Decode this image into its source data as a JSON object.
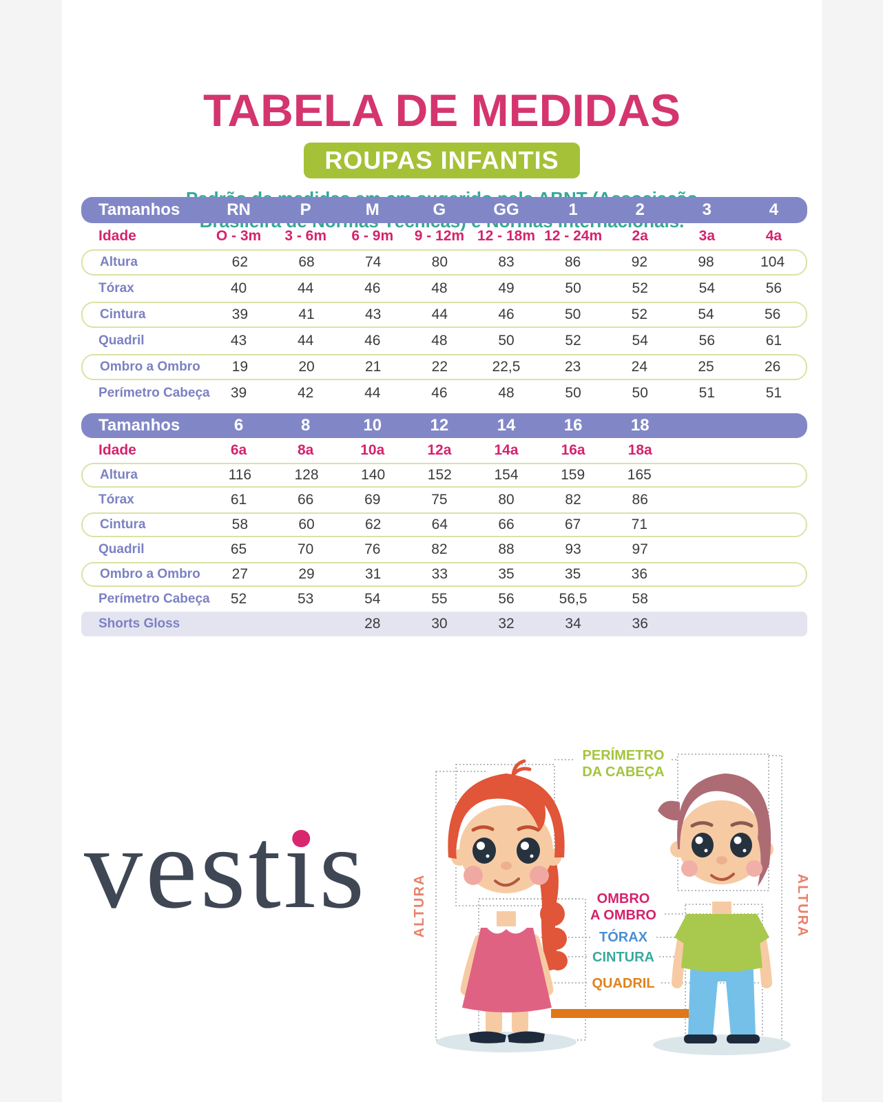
{
  "page": {
    "title": "TABELA DE MEDIDAS",
    "subtitle": "ROUPAS INFANTIS",
    "description_line1": "Padrão de medidas em cm sugerido pela ABNT (Associação",
    "description_line2": "Brasileira de Normas Técnicas) e Normas Internacionais.",
    "brand_prefix": "vest",
    "brand_dotless_i": "ı",
    "brand_suffix": "s"
  },
  "colors": {
    "title_pink": "#d4356f",
    "badge_green": "#a5c138",
    "description_teal": "#38a79b",
    "header_purple": "#8187c6",
    "age_pink": "#d4236d",
    "label_periwinkle": "#7b81c3",
    "row_border_lime": "#d9e3a4",
    "highlight_lavender": "#e4e4f1",
    "logo_dot_pink": "#d8276f",
    "bar_orange": "#e07818"
  },
  "table1": {
    "header_label": "Tamanhos",
    "sizes": [
      "RN",
      "P",
      "M",
      "G",
      "GG",
      "1",
      "2",
      "3",
      "4"
    ],
    "age_label": "Idade",
    "ages": [
      "O - 3m",
      "3 - 6m",
      "6 - 9m",
      "9 - 12m",
      "12 - 18m",
      "12 - 24m",
      "2a",
      "3a",
      "4a"
    ],
    "rows": [
      {
        "label": "Altura",
        "values": [
          "62",
          "68",
          "74",
          "80",
          "83",
          "86",
          "92",
          "98",
          "104"
        ],
        "bordered": true
      },
      {
        "label": "Tórax",
        "values": [
          "40",
          "44",
          "46",
          "48",
          "49",
          "50",
          "52",
          "54",
          "56"
        ],
        "bordered": false
      },
      {
        "label": "Cintura",
        "values": [
          "39",
          "41",
          "43",
          "44",
          "46",
          "50",
          "52",
          "54",
          "56"
        ],
        "bordered": true
      },
      {
        "label": "Quadril",
        "values": [
          "43",
          "44",
          "46",
          "48",
          "50",
          "52",
          "54",
          "56",
          "61"
        ],
        "bordered": false
      },
      {
        "label": "Ombro a Ombro",
        "values": [
          "19",
          "20",
          "21",
          "22",
          "22,5",
          "23",
          "24",
          "25",
          "26"
        ],
        "bordered": true
      },
      {
        "label": "Perímetro Cabeça",
        "values": [
          "39",
          "42",
          "44",
          "46",
          "48",
          "50",
          "50",
          "51",
          "51"
        ],
        "bordered": false
      }
    ]
  },
  "table2": {
    "header_label": "Tamanhos",
    "sizes": [
      "6",
      "8",
      "10",
      "12",
      "14",
      "16",
      "18"
    ],
    "age_label": "Idade",
    "ages": [
      "6a",
      "8a",
      "10a",
      "12a",
      "14a",
      "16a",
      "18a"
    ],
    "rows": [
      {
        "label": "Altura",
        "values": [
          "116",
          "128",
          "140",
          "152",
          "154",
          "159",
          "165"
        ],
        "bordered": true
      },
      {
        "label": "Tórax",
        "values": [
          "61",
          "66",
          "69",
          "75",
          "80",
          "82",
          "86"
        ],
        "bordered": false
      },
      {
        "label": "Cintura",
        "values": [
          "58",
          "60",
          "62",
          "64",
          "66",
          "67",
          "71"
        ],
        "bordered": true
      },
      {
        "label": "Quadril",
        "values": [
          "65",
          "70",
          "76",
          "82",
          "88",
          "93",
          "97"
        ],
        "bordered": false
      },
      {
        "label": "Ombro a Ombro",
        "values": [
          "27",
          "29",
          "31",
          "33",
          "35",
          "35",
          "36"
        ],
        "bordered": true
      },
      {
        "label": "Perímetro Cabeça",
        "values": [
          "52",
          "53",
          "54",
          "55",
          "56",
          "56,5",
          "58"
        ],
        "bordered": false
      },
      {
        "label": "Shorts Gloss",
        "values": [
          "",
          "",
          "28",
          "30",
          "32",
          "34",
          "36"
        ],
        "highlight": true
      }
    ]
  },
  "figure": {
    "head_label_line1": "PERÍMETRO",
    "head_label_line2": "DA CABEÇA",
    "height_left": "ALTURA",
    "height_right": "ALTURA",
    "shoulder_line1": "OMBRO",
    "shoulder_line2": "A OMBRO",
    "chest": "TÓRAX",
    "waist": "CINTURA",
    "hip": "QUADRIL"
  }
}
